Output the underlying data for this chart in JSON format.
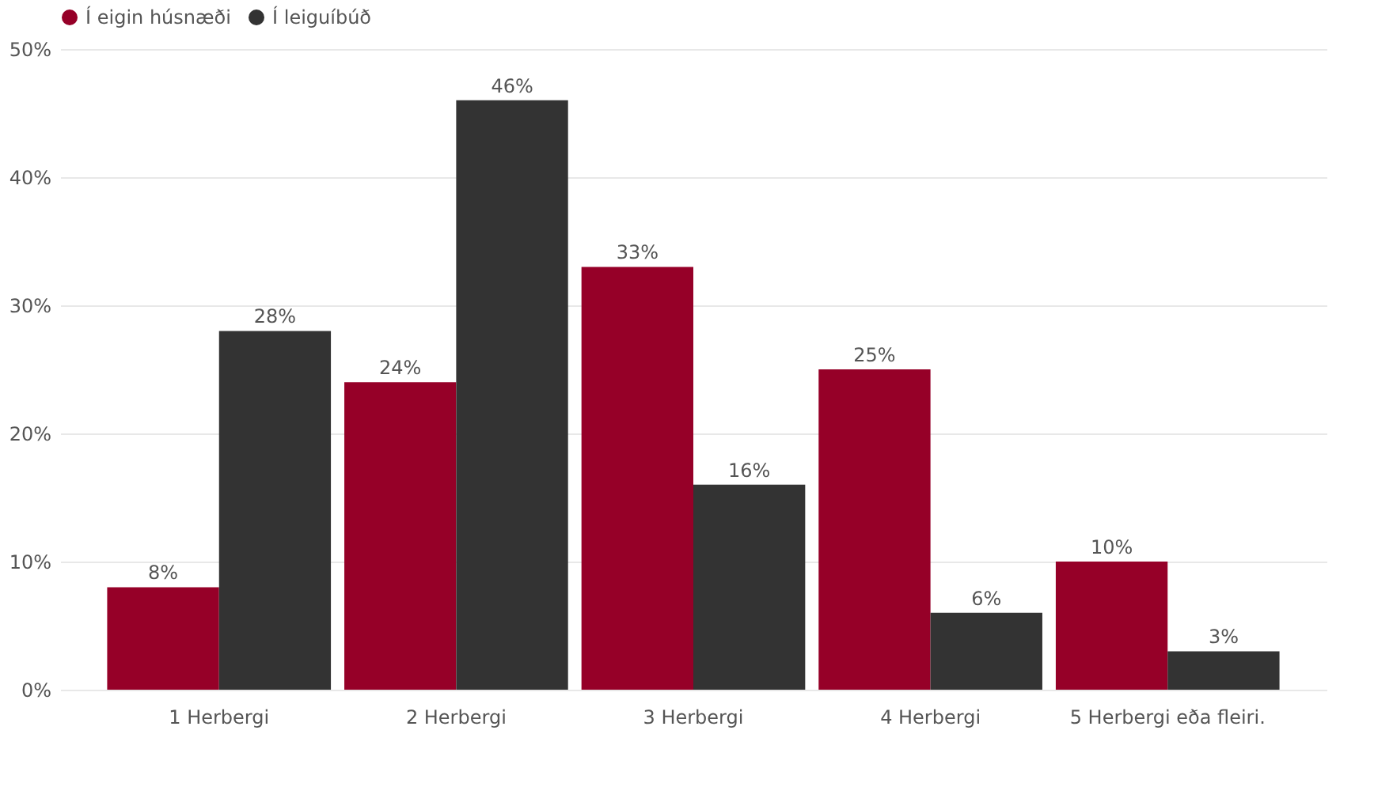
{
  "chart_data": {
    "type": "bar",
    "categories": [
      "1 Herbergi",
      "2 Herbergi",
      "3 Herbergi",
      "4 Herbergi",
      "5 Herbergi eða fleiri."
    ],
    "series": [
      {
        "name": "Í eigin húsnæði",
        "color": "#960028",
        "values": [
          8,
          24,
          33,
          25,
          10
        ],
        "value_labels": [
          "8%",
          "24%",
          "33%",
          "25%",
          "10%"
        ]
      },
      {
        "name": "Í leiguíbúð",
        "color": "#333333",
        "values": [
          28,
          46,
          16,
          6,
          3
        ],
        "value_labels": [
          "28%",
          "46%",
          "16%",
          "6%",
          "3%"
        ]
      }
    ],
    "ylim": [
      0,
      50
    ],
    "yticks": [
      {
        "value": 0,
        "label": "0%"
      },
      {
        "value": 10,
        "label": "10%"
      },
      {
        "value": 20,
        "label": "20%"
      },
      {
        "value": 30,
        "label": "30%"
      },
      {
        "value": 40,
        "label": "40%"
      },
      {
        "value": 50,
        "label": "50%"
      }
    ],
    "grid": "y",
    "legend": "top left"
  }
}
